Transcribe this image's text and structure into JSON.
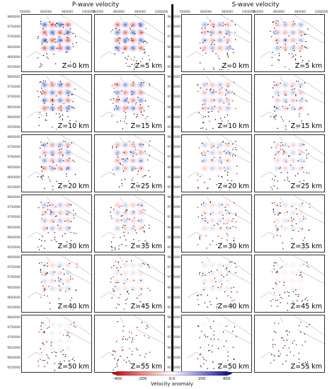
{
  "titles": {
    "left": "P-wave velocity",
    "right": "S-wave velocity"
  },
  "x_ticks": [
    "700000",
    "800000",
    "900000",
    "1000000"
  ],
  "y_ticks": [
    "9800000",
    "9750000",
    "9700000",
    "9650000",
    "9600000",
    "9550000"
  ],
  "depth_labels": [
    "Z=0 km",
    "Z=5 km",
    "Z=10 km",
    "Z=15 km",
    "Z=20 km",
    "Z=25 km",
    "Z=30 km",
    "Z=35 km",
    "Z=40 km",
    "Z=45 km",
    "Z=50 km",
    "Z=55 km"
  ],
  "colorbar": {
    "label": "Velocity anomaly",
    "ticks": [
      "-400",
      "-200",
      "0.0",
      "200",
      "400"
    ],
    "colors": {
      "negative": "#c00000",
      "zero": "#ffffff",
      "positive": "#00008b"
    }
  }
}
